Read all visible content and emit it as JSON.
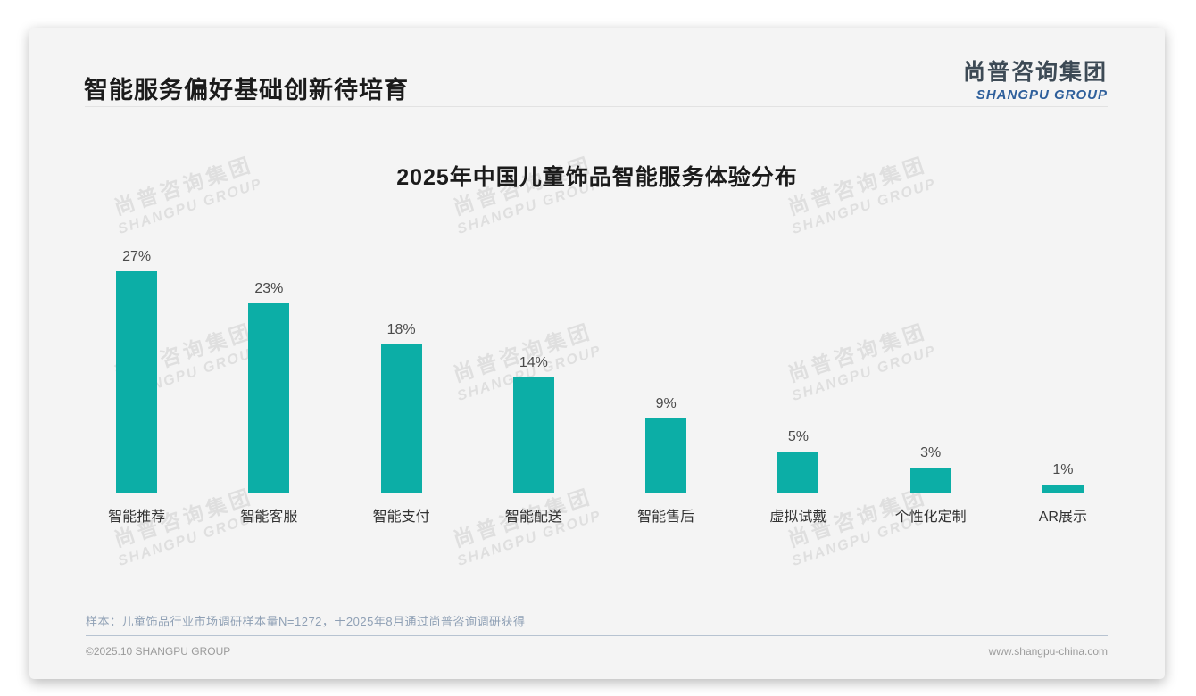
{
  "header": {
    "title": "智能服务偏好基础创新待培育",
    "logo_cn": "尚普咨询集团",
    "logo_en": "SHANGPU GROUP"
  },
  "chart_data": {
    "type": "bar",
    "title": "2025年中国儿童饰品智能服务体验分布",
    "categories": [
      "智能推荐",
      "智能客服",
      "智能支付",
      "智能配送",
      "智能售后",
      "虚拟试戴",
      "个性化定制",
      "AR展示"
    ],
    "values": [
      27,
      23,
      18,
      14,
      9,
      5,
      3,
      1
    ],
    "value_labels": [
      "27%",
      "23%",
      "18%",
      "14%",
      "9%",
      "5%",
      "3%",
      "1%"
    ],
    "xlabel": "",
    "ylabel": "",
    "y_axis_visible": false,
    "grid": false,
    "legend": false,
    "bar_color": "#0caea6"
  },
  "watermark": {
    "line1": "尚普咨询集团",
    "line2": "SHANGPU GROUP"
  },
  "note": "样本：儿童饰品行业市场调研样本量N=1272，于2025年8月通过尚普咨询调研获得",
  "footer": {
    "left": "©2025.10 SHANGPU GROUP",
    "right": "www.shangpu-china.com"
  },
  "colors": {
    "bar": "#0caea6",
    "logo_blue": "#2e5f9b",
    "note_text": "#8fa0b5",
    "card_bg": "#f4f4f4"
  }
}
